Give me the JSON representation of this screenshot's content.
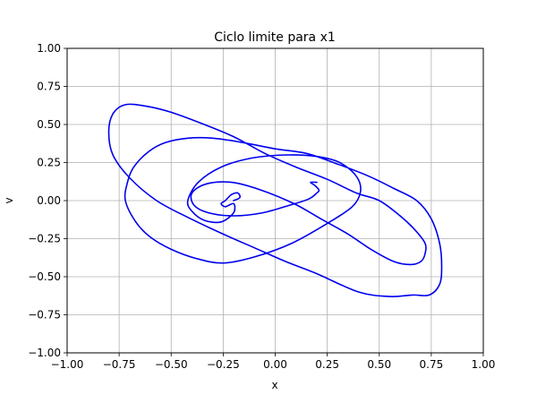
{
  "chart_data": {
    "type": "line",
    "title": "Ciclo limite para x1",
    "xlabel": "x",
    "ylabel": "v",
    "xlim": [
      -1.0,
      1.0
    ],
    "ylim": [
      -1.0,
      1.0
    ],
    "xticks": [
      -1.0,
      -0.75,
      -0.5,
      -0.25,
      0.0,
      0.25,
      0.5,
      0.75,
      1.0
    ],
    "yticks": [
      -1.0,
      -0.75,
      -0.5,
      -0.25,
      0.0,
      0.25,
      0.5,
      0.75,
      1.0
    ],
    "xtick_labels": [
      "−1.00",
      "−0.75",
      "−0.50",
      "−0.25",
      "0.00",
      "0.25",
      "0.50",
      "0.75",
      "1.00"
    ],
    "ytick_labels": [
      "−1.00",
      "−0.75",
      "−0.50",
      "−0.25",
      "0.00",
      "0.25",
      "0.50",
      "0.75",
      "1.00"
    ],
    "grid": true,
    "line_color": "#0000ee",
    "series": [
      {
        "x": [
          -0.2,
          -0.17,
          -0.18,
          -0.21,
          -0.24,
          -0.26,
          -0.24,
          -0.2,
          -0.2,
          -0.26,
          -0.34,
          -0.4,
          -0.42,
          -0.37,
          -0.26,
          -0.11,
          0.06,
          0.2,
          0.31,
          0.39,
          0.41,
          0.37,
          0.25,
          0.08,
          -0.1,
          -0.25,
          -0.38,
          -0.5,
          -0.6,
          -0.67,
          -0.72,
          -0.71,
          -0.68,
          -0.61,
          -0.53,
          -0.42,
          -0.3,
          -0.15,
          0.0,
          0.15,
          0.3,
          0.45,
          0.57,
          0.68,
          0.75,
          0.79,
          0.8,
          0.79,
          0.74,
          0.66,
          0.55,
          0.4,
          0.2,
          0.05,
          -0.1,
          -0.25,
          -0.42,
          -0.57,
          -0.7,
          -0.78,
          -0.8,
          -0.78,
          -0.72,
          -0.62,
          -0.5,
          -0.36,
          -0.2,
          -0.05,
          0.1,
          0.25,
          0.39,
          0.5,
          0.6,
          0.67,
          0.72,
          0.72,
          0.7,
          0.65,
          0.57,
          0.46,
          0.35,
          0.22,
          0.09,
          -0.07,
          -0.21,
          -0.33,
          -0.4,
          -0.39,
          -0.32,
          -0.2,
          -0.06,
          0.07,
          0.16,
          0.2,
          0.21,
          0.19,
          0.17,
          0.2
        ],
        "y": [
          0.0,
          0.02,
          0.05,
          0.04,
          0.0,
          -0.02,
          -0.04,
          -0.02,
          -0.08,
          -0.14,
          -0.13,
          -0.07,
          0.0,
          0.12,
          0.22,
          0.28,
          0.3,
          0.29,
          0.25,
          0.16,
          0.06,
          -0.04,
          -0.15,
          -0.28,
          -0.37,
          -0.41,
          -0.38,
          -0.32,
          -0.24,
          -0.14,
          0.0,
          0.12,
          0.22,
          0.32,
          0.38,
          0.41,
          0.41,
          0.38,
          0.34,
          0.31,
          0.24,
          0.16,
          0.08,
          0.0,
          -0.12,
          -0.28,
          -0.43,
          -0.55,
          -0.62,
          -0.62,
          -0.63,
          -0.6,
          -0.48,
          -0.4,
          -0.31,
          -0.22,
          -0.11,
          0.0,
          0.15,
          0.3,
          0.45,
          0.57,
          0.63,
          0.62,
          0.58,
          0.51,
          0.42,
          0.31,
          0.22,
          0.14,
          0.05,
          0.0,
          -0.1,
          -0.19,
          -0.28,
          -0.35,
          -0.4,
          -0.42,
          -0.4,
          -0.32,
          -0.22,
          -0.12,
          -0.02,
          0.07,
          0.12,
          0.11,
          0.05,
          -0.03,
          -0.08,
          -0.1,
          -0.08,
          -0.03,
          0.01,
          0.05,
          0.07,
          0.1,
          0.12,
          0.12
        ]
      }
    ]
  }
}
